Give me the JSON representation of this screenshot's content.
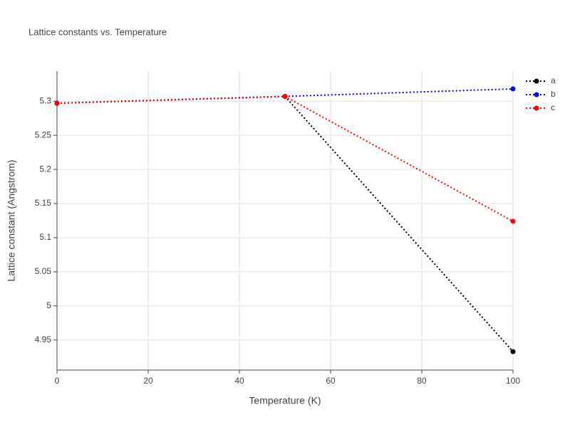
{
  "chart_data": {
    "type": "line",
    "title": "Lattice constants vs. Temperature",
    "x_label": "Temperature (K)",
    "y_label": "Lattice constant (Angstrom)",
    "x": [
      0,
      50,
      100
    ],
    "series": [
      {
        "name": "a",
        "color": "#000000",
        "values": [
          5.297,
          5.307,
          4.933
        ]
      },
      {
        "name": "b",
        "color": "#0000ff",
        "values": [
          5.297,
          5.307,
          5.318
        ]
      },
      {
        "name": "c",
        "color": "#ff0000",
        "values": [
          5.297,
          5.307,
          5.124
        ]
      }
    ],
    "xlim": [
      0,
      100
    ],
    "xticks": [
      0,
      20,
      40,
      60,
      80,
      100
    ],
    "ylim": [
      4.906,
      5.344
    ],
    "yticks": [
      4.95,
      5,
      5.05,
      5.1,
      5.15,
      5.2,
      5.25,
      5.3
    ],
    "grid": true,
    "line_style": "dotted",
    "legend": "top-right"
  }
}
